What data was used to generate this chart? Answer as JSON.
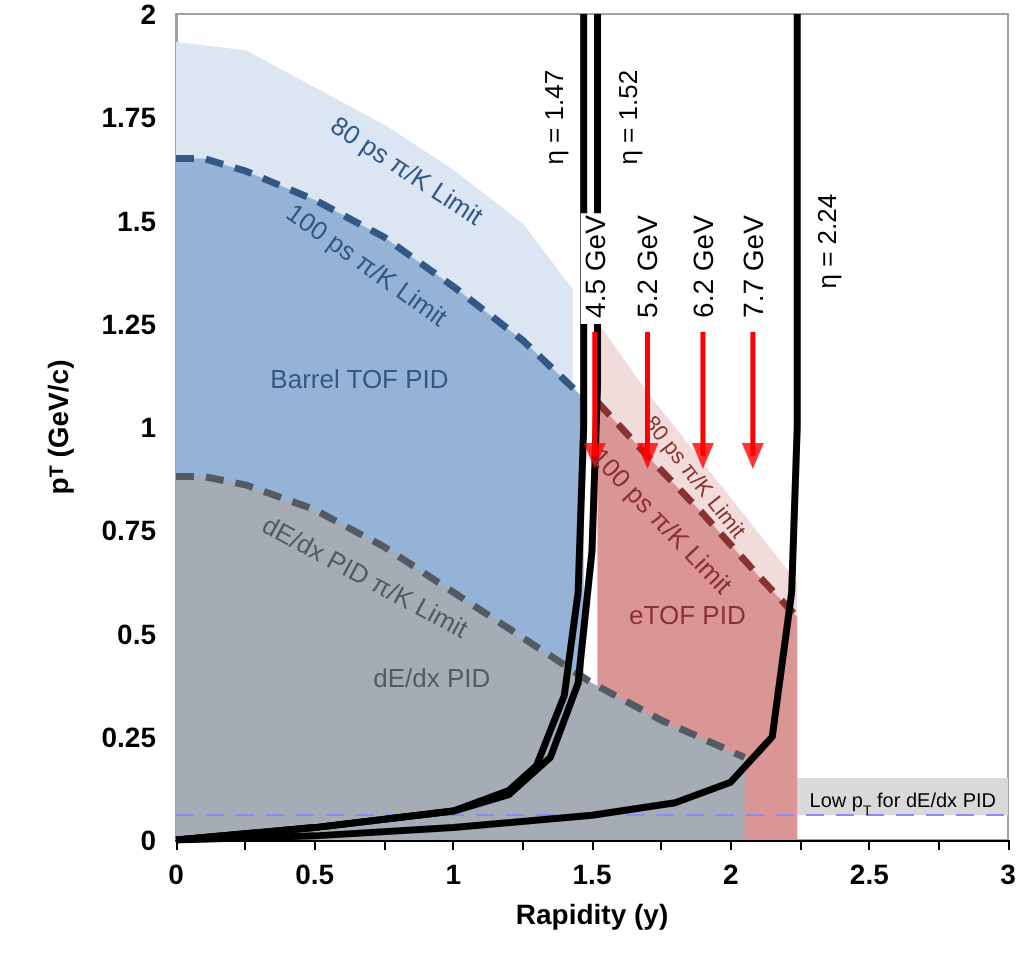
{
  "chart_data": {
    "type": "area",
    "xlabel": "Rapidity (y)",
    "ylabel": "p$_{T}$ (GeV/c)",
    "xlim": [
      0,
      3
    ],
    "xticks": [
      0,
      {
        "value": 0.25,
        "label": null
      },
      0.5,
      {
        "value": 0.75,
        "label": null
      },
      1,
      {
        "value": 1.25,
        "label": null
      },
      1.5,
      {
        "value": 1.75,
        "label": null
      },
      2,
      {
        "value": 2.25,
        "label": null
      },
      2.5,
      {
        "value": 2.75,
        "label": null
      },
      3
    ],
    "ylim": [
      0,
      2
    ],
    "yticks": [
      0,
      0.25,
      0.5,
      0.75,
      1,
      1.25,
      1.5,
      1.75,
      2
    ],
    "grid": false,
    "series": [
      {
        "color": "#dce6f2",
        "x": [
          0,
          0.25,
          0.5,
          0.75,
          1,
          1.25,
          1.43
        ],
        "values": [
          1.93,
          1.91,
          1.82,
          1.73,
          1.62,
          1.49,
          1.33
        ]
      },
      {
        "name": "Barrel TOF PID",
        "color": "#95b3d7",
        "line_style": "dashed",
        "x": [
          0,
          0.1,
          0.25,
          0.5,
          0.75,
          1,
          1.25,
          1.47
        ],
        "values": [
          1.65,
          1.65,
          1.62,
          1.55,
          1.46,
          1.34,
          1.21,
          1.07
        ]
      },
      {
        "color": "#f2dcdb",
        "x": [
          1.52,
          1.7,
          1.9,
          2.1,
          2.24
        ],
        "values": [
          1.25,
          1.08,
          0.91,
          0.74,
          0.62
        ]
      },
      {
        "name": "eTOF PID",
        "color": "#da9694",
        "line_style": "dashed",
        "x": [
          1.52,
          1.7,
          1.9,
          2.1,
          2.24
        ],
        "values": [
          1.06,
          0.93,
          0.79,
          0.64,
          0.54
        ]
      },
      {
        "name": "dE/dx PID",
        "color": "#a6acb5",
        "line_style": "dashed",
        "x": [
          0,
          0.1,
          0.25,
          0.5,
          0.75,
          1,
          1.25,
          1.5,
          1.75,
          2.05
        ],
        "values": [
          0.88,
          0.88,
          0.86,
          0.8,
          0.71,
          0.6,
          0.49,
          0.38,
          0.29,
          0.2
        ]
      },
      {
        "type": "line",
        "color": "#000000",
        "line_style": "solid",
        "x": [
          0,
          0.5,
          1,
          1.2,
          1.3,
          1.4,
          1.45,
          1.47,
          1.47
        ],
        "values": [
          0,
          0.03,
          0.07,
          0.12,
          0.18,
          0.35,
          0.6,
          1,
          2
        ]
      },
      {
        "type": "line",
        "color": "#000000",
        "line_style": "solid",
        "x": [
          0,
          0.5,
          1,
          1.2,
          1.35,
          1.45,
          1.5,
          1.52,
          1.52
        ],
        "values": [
          0,
          0.03,
          0.07,
          0.11,
          0.2,
          0.38,
          0.7,
          1.1,
          2
        ]
      },
      {
        "type": "line",
        "color": "#000000",
        "line_style": "solid",
        "x": [
          0,
          0.5,
          1,
          1.5,
          1.8,
          2,
          2.15,
          2.22,
          2.24,
          2.24
        ],
        "values": [
          0,
          0.01,
          0.03,
          0.06,
          0.09,
          0.14,
          0.25,
          0.6,
          1,
          2
        ]
      },
      {
        "type": "scatter",
        "color": "#ff0000",
        "marker": "triangle",
        "x": [
          1.51,
          1.7,
          1.9,
          2.08
        ],
        "values": [
          0.93,
          0.93,
          0.93,
          0.93
        ]
      }
    ],
    "bands": [
      {
        "axis": "y",
        "from": 0.06,
        "to": 0.15,
        "color": "#d9d9d9"
      }
    ],
    "ref_lines": [
      {
        "axis": "y",
        "value": 0.06,
        "label": "Low p$_{T}$ for dE/dx PID",
        "color": "#8c8cf0",
        "line_style": "dashed"
      }
    ],
    "annotations": [
      {
        "text": "80 ps π/K Limit",
        "x": 0.9,
        "y": 1.69
      },
      {
        "text": "100 ps π/K Limit",
        "x": 0.76,
        "y": 1.46
      },
      {
        "text": "dE/dx PID π/K Limit",
        "x": 0.74,
        "y": 0.71
      },
      {
        "text": "η = 1.47",
        "x": 1.47,
        "y": 1.75
      },
      {
        "text": "η = 1.52",
        "x": 1.52,
        "y": 1.75
      },
      {
        "text": "η = 2.24",
        "x": 2.24,
        "y": 1.45
      },
      "4.5 GeV",
      "5.2 GeV",
      "6.2 GeV",
      "7.7 GeV",
      {
        "text": "80 ps π/K Limit",
        "x": 1.91,
        "y": 0.9
      },
      {
        "text": "100 ps π/K Limit",
        "x": 1.84,
        "y": 0.83
      }
    ]
  }
}
